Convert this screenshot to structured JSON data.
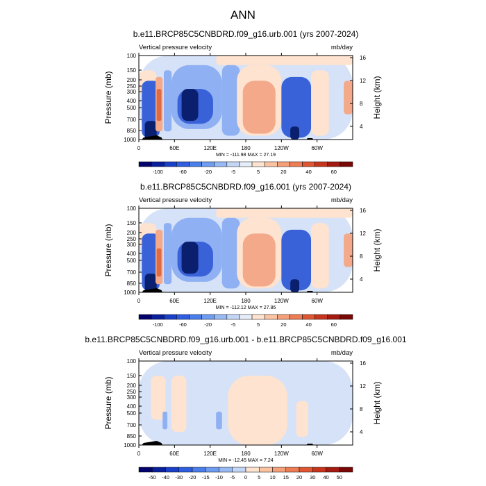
{
  "page": {
    "title": "ANN"
  },
  "colors": {
    "strong_neg": "#0a1f6e",
    "neg": "#3a62d8",
    "mild_neg": "#8fb0f2",
    "near_zero_neg": "#d6e2f7",
    "near_zero_pos": "#fde3d0",
    "pos": "#f3a98a",
    "strong_pos": "#e06a44"
  },
  "chart_data": [
    {
      "type": "heatmap",
      "title": "b.e11.BRCP85C5CNBDRD.f09_g16.urb.001 (yrs 2007-2024)",
      "left_label": "Vertical pressure velocity",
      "units": "mb/day",
      "ylabel": "Pressure (mb)",
      "ylabel_right": "Height (km)",
      "x_ticks": [
        "0",
        "60E",
        "120E",
        "180",
        "120W",
        "60W"
      ],
      "y_ticks": [
        "100",
        "150",
        "200",
        "250",
        "300",
        "400",
        "500",
        "700",
        "850",
        "1000"
      ],
      "y_right_ticks": [
        "16",
        "12",
        "8",
        "4"
      ],
      "stats": "MIN = -111.98  MAX =  27.19",
      "colorbar_labels": [
        "-100",
        "-60",
        "-20",
        "-5",
        "5",
        "20",
        "40",
        "60"
      ],
      "colorbar_colors": [
        "#03036e",
        "#0a1f9c",
        "#1a3fc8",
        "#2f5ee0",
        "#4a7eea",
        "#6e9cf0",
        "#98baf4",
        "#c4d6f6",
        "#e6eefa",
        "#fde3d0",
        "#fbc3a2",
        "#f6a07a",
        "#ee7d55",
        "#e05633",
        "#c8351e",
        "#a51a10",
        "#7a0806"
      ],
      "regions": [
        {
          "lon": [
            0,
            360
          ],
          "p": [
            100,
            1000
          ],
          "v": "near_zero_neg"
        },
        {
          "lon": [
            130,
            360
          ],
          "p": [
            100,
            130
          ],
          "v": "near_zero_pos"
        },
        {
          "lon": [
            0,
            30
          ],
          "p": [
            150,
            300
          ],
          "v": "near_zero_pos"
        },
        {
          "lon": [
            5,
            35
          ],
          "p": [
            200,
            950
          ],
          "v": "neg"
        },
        {
          "lon": [
            10,
            30
          ],
          "p": [
            600,
            1000
          ],
          "v": "strong_neg"
        },
        {
          "lon": [
            28,
            40
          ],
          "p": [
            180,
            800
          ],
          "v": "pos"
        },
        {
          "lon": [
            30,
            38
          ],
          "p": [
            250,
            600
          ],
          "v": "strong_pos"
        },
        {
          "lon": [
            42,
            55
          ],
          "p": [
            150,
            800
          ],
          "v": "mild_neg"
        },
        {
          "lon": [
            55,
            140
          ],
          "p": [
            130,
            750
          ],
          "v": "mild_neg"
        },
        {
          "lon": [
            65,
            125
          ],
          "p": [
            250,
            650
          ],
          "v": "neg"
        },
        {
          "lon": [
            72,
            100
          ],
          "p": [
            250,
            600
          ],
          "v": "strong_neg"
        },
        {
          "lon": [
            140,
            170
          ],
          "p": [
            130,
            900
          ],
          "v": "mild_neg"
        },
        {
          "lon": [
            165,
            240
          ],
          "p": [
            130,
            900
          ],
          "v": "near_zero_pos"
        },
        {
          "lon": [
            175,
            230
          ],
          "p": [
            200,
            850
          ],
          "v": "pos"
        },
        {
          "lon": [
            180,
            225
          ],
          "p": [
            300,
            800
          ],
          "v": "pos"
        },
        {
          "lon": [
            240,
            290
          ],
          "p": [
            180,
            950
          ],
          "v": "neg"
        },
        {
          "lon": [
            255,
            270
          ],
          "p": [
            700,
            1000
          ],
          "v": "strong_neg"
        },
        {
          "lon": [
            290,
            320
          ],
          "p": [
            150,
            900
          ],
          "v": "near_zero_pos"
        },
        {
          "lon": [
            345,
            360
          ],
          "p": [
            200,
            500
          ],
          "v": "pos"
        }
      ]
    },
    {
      "type": "heatmap",
      "title": "b.e11.BRCP85C5CNBDRD.f09_g16.001 (yrs 2007-2024)",
      "left_label": "Vertical pressure velocity",
      "units": "mb/day",
      "ylabel": "Pressure (mb)",
      "ylabel_right": "Height (km)",
      "x_ticks": [
        "0",
        "60E",
        "120E",
        "180",
        "120W",
        "60W"
      ],
      "y_ticks": [
        "100",
        "150",
        "200",
        "250",
        "300",
        "400",
        "500",
        "700",
        "850",
        "1000"
      ],
      "y_right_ticks": [
        "16",
        "12",
        "8",
        "4"
      ],
      "stats": "MIN = -112.12  MAX =  27.86",
      "colorbar_labels": [
        "-100",
        "-60",
        "-20",
        "-5",
        "5",
        "20",
        "40",
        "60"
      ],
      "colorbar_colors": [
        "#03036e",
        "#0a1f9c",
        "#1a3fc8",
        "#2f5ee0",
        "#4a7eea",
        "#6e9cf0",
        "#98baf4",
        "#c4d6f6",
        "#e6eefa",
        "#fde3d0",
        "#fbc3a2",
        "#f6a07a",
        "#ee7d55",
        "#e05633",
        "#c8351e",
        "#a51a10",
        "#7a0806"
      ],
      "regions": [
        {
          "lon": [
            0,
            360
          ],
          "p": [
            100,
            1000
          ],
          "v": "near_zero_neg"
        },
        {
          "lon": [
            130,
            360
          ],
          "p": [
            100,
            130
          ],
          "v": "near_zero_pos"
        },
        {
          "lon": [
            0,
            30
          ],
          "p": [
            150,
            300
          ],
          "v": "near_zero_pos"
        },
        {
          "lon": [
            5,
            35
          ],
          "p": [
            200,
            950
          ],
          "v": "neg"
        },
        {
          "lon": [
            10,
            30
          ],
          "p": [
            600,
            1000
          ],
          "v": "strong_neg"
        },
        {
          "lon": [
            28,
            40
          ],
          "p": [
            180,
            800
          ],
          "v": "pos"
        },
        {
          "lon": [
            30,
            38
          ],
          "p": [
            300,
            650
          ],
          "v": "strong_pos"
        },
        {
          "lon": [
            42,
            55
          ],
          "p": [
            150,
            800
          ],
          "v": "mild_neg"
        },
        {
          "lon": [
            55,
            140
          ],
          "p": [
            130,
            750
          ],
          "v": "mild_neg"
        },
        {
          "lon": [
            65,
            125
          ],
          "p": [
            250,
            650
          ],
          "v": "neg"
        },
        {
          "lon": [
            72,
            100
          ],
          "p": [
            250,
            600
          ],
          "v": "strong_neg"
        },
        {
          "lon": [
            140,
            170
          ],
          "p": [
            130,
            900
          ],
          "v": "mild_neg"
        },
        {
          "lon": [
            165,
            240
          ],
          "p": [
            130,
            900
          ],
          "v": "near_zero_pos"
        },
        {
          "lon": [
            175,
            230
          ],
          "p": [
            200,
            850
          ],
          "v": "pos"
        },
        {
          "lon": [
            180,
            225
          ],
          "p": [
            300,
            800
          ],
          "v": "pos"
        },
        {
          "lon": [
            240,
            290
          ],
          "p": [
            180,
            950
          ],
          "v": "neg"
        },
        {
          "lon": [
            255,
            270
          ],
          "p": [
            700,
            1000
          ],
          "v": "strong_neg"
        },
        {
          "lon": [
            290,
            320
          ],
          "p": [
            150,
            900
          ],
          "v": "near_zero_pos"
        },
        {
          "lon": [
            345,
            360
          ],
          "p": [
            200,
            500
          ],
          "v": "pos"
        }
      ]
    },
    {
      "type": "heatmap",
      "title": "b.e11.BRCP85C5CNBDRD.f09_g16.urb.001 - b.e11.BRCP85C5CNBDRD.f09_g16.001",
      "left_label": "Vertical pressure velocity",
      "units": "mb/day",
      "ylabel": "Pressure (mb)",
      "ylabel_right": "Height (km)",
      "x_ticks": [
        "0",
        "60E",
        "120E",
        "180",
        "120W",
        "60W"
      ],
      "y_ticks": [
        "100",
        "150",
        "200",
        "250",
        "300",
        "400",
        "500",
        "700",
        "850",
        "1000"
      ],
      "y_right_ticks": [
        "16",
        "12",
        "8",
        "4"
      ],
      "stats": "MIN = -12.45  MAX =  7.24",
      "colorbar_labels": [
        "-50",
        "-40",
        "-30",
        "-20",
        "-15",
        "-10",
        "-5",
        "0",
        "5",
        "10",
        "15",
        "20",
        "30",
        "40",
        "50"
      ],
      "colorbar_colors": [
        "#03036e",
        "#0a1f9c",
        "#1a3fc8",
        "#2f5ee0",
        "#4a7eea",
        "#6e9cf0",
        "#98baf4",
        "#c4d6f6",
        "#fde3d0",
        "#fbc3a2",
        "#f6a07a",
        "#ee7d55",
        "#e05633",
        "#c8351e",
        "#a51a10",
        "#7a0806"
      ],
      "regions": [
        {
          "lon": [
            0,
            360
          ],
          "p": [
            100,
            1000
          ],
          "v": "near_zero_neg"
        },
        {
          "lon": [
            20,
            45
          ],
          "p": [
            150,
            500
          ],
          "v": "near_zero_pos"
        },
        {
          "lon": [
            55,
            80
          ],
          "p": [
            150,
            700
          ],
          "v": "near_zero_pos"
        },
        {
          "lon": [
            150,
            250
          ],
          "p": [
            150,
            1000
          ],
          "v": "near_zero_pos"
        },
        {
          "lon": [
            265,
            285
          ],
          "p": [
            300,
            800
          ],
          "v": "near_zero_pos"
        },
        {
          "lon": [
            40,
            48
          ],
          "p": [
            400,
            650
          ],
          "v": "mild_neg"
        },
        {
          "lon": [
            130,
            140
          ],
          "p": [
            400,
            650
          ],
          "v": "mild_neg"
        }
      ]
    }
  ]
}
